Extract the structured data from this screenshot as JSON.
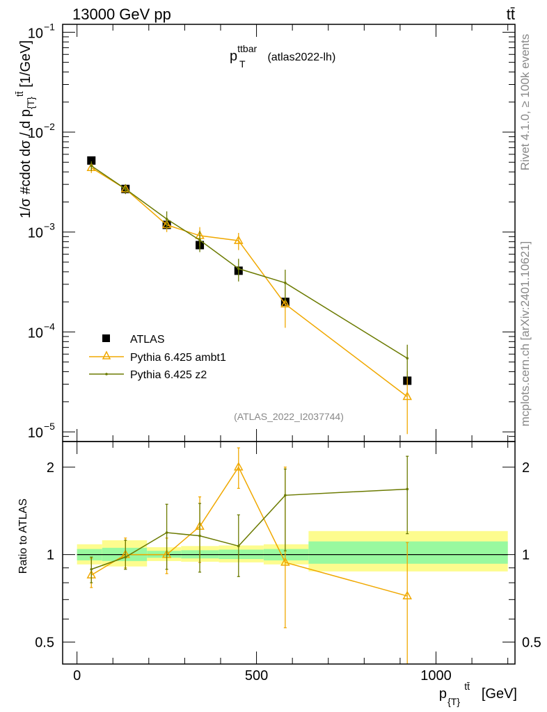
{
  "header": {
    "left": "13000 GeV pp",
    "right": "tt̄"
  },
  "side_labels": {
    "top": "Rivet 4.1.0, ≥ 100k events",
    "bottom": "mcplots.cern.ch [arXiv:2401.10621]"
  },
  "chart_data": [
    {
      "type": "line",
      "panel": "main",
      "title_main": "p",
      "title_sup": "ttbar",
      "title_sub": "T",
      "title_suffix": " (atlas2022-lh)",
      "watermark": "(ATLAS_2022_I2037744)",
      "ylabel": "1/σ #cdot dσ / d p_{T}^{tt̄} [1/GeV]",
      "ylabel_main": "1/σ #cdot dσ / d p",
      "ylabel_sub": "{T}",
      "ylabel_sup": "tt̄",
      "ylabel_unit": " [1/GeV]",
      "yscale": "log",
      "ylim": [
        8e-06,
        0.12
      ],
      "xlim": [
        -40,
        1220
      ],
      "ytick_labels": [
        "10",
        "10",
        "10",
        "10",
        "10"
      ],
      "ytick_exponents": [
        "−1",
        "−2",
        "−3",
        "−4",
        "−5"
      ],
      "ytick_values": [
        0.1,
        0.01,
        0.001,
        0.0001,
        1e-05
      ],
      "legend_position": "lower-left",
      "series": [
        {
          "name": "ATLAS",
          "color": "#000000",
          "marker": "square",
          "x": [
            40,
            135,
            250,
            342,
            450,
            580,
            920
          ],
          "y": [
            0.0052,
            0.0027,
            0.00118,
            0.00074,
            0.00041,
            0.0002,
            3.25e-05
          ]
        },
        {
          "name": "Pythia 6.425 ambt1",
          "color": "#f0a800",
          "marker": "triangle",
          "x": [
            40,
            135,
            250,
            342,
            450,
            580,
            920
          ],
          "y": [
            0.0044,
            0.0027,
            0.00118,
            0.00092,
            0.00082,
            0.00019,
            2.25e-05
          ],
          "err_up": [
            0.0005,
            0.0003,
            0.00018,
            0.0002,
            0.00016,
            9e-05,
            1.8e-05
          ],
          "err_down": [
            0.0005,
            0.0003,
            0.00018,
            0.0002,
            0.00016,
            8e-05,
            1.3e-05
          ]
        },
        {
          "name": "Pythia 6.425 z2",
          "color": "#6b7a00",
          "marker": "dot",
          "x": [
            40,
            135,
            250,
            342,
            450,
            580,
            920
          ],
          "y": [
            0.0046,
            0.0027,
            0.00135,
            0.00083,
            0.00043,
            0.00031,
            5.45e-05
          ],
          "err_up": [
            0.0005,
            0.0003,
            0.00026,
            0.0002,
            0.00011,
            0.00011,
            2e-05
          ],
          "err_down": [
            0.0005,
            0.0003,
            0.00026,
            0.0002,
            0.00011,
            0.00011,
            2e-05
          ]
        }
      ]
    },
    {
      "type": "line",
      "panel": "ratio",
      "ylabel": "Ratio to ATLAS",
      "xlabel": "p_{T}^{tt̄} [GeV]",
      "xlabel_main": "p",
      "xlabel_sub": "{T}",
      "xlabel_sup": "tt̄",
      "xlabel_unit": " [GeV]",
      "yscale": "log",
      "ylim": [
        0.42,
        2.45
      ],
      "xlim": [
        -40,
        1220
      ],
      "ytick_labels": [
        "2",
        "1",
        "0.5"
      ],
      "ytick_values": [
        2,
        1,
        0.5
      ],
      "xtick_labels": [
        "0",
        "500",
        "1000"
      ],
      "xtick_values": [
        0,
        500,
        1000
      ],
      "bands": [
        {
          "x0": 0,
          "x1": 70,
          "yellow": [
            0.925,
            1.085
          ],
          "green": [
            0.955,
            1.045
          ]
        },
        {
          "x0": 70,
          "x1": 195,
          "yellow": [
            0.91,
            1.12
          ],
          "green": [
            0.95,
            1.055
          ]
        },
        {
          "x0": 195,
          "x1": 290,
          "yellow": [
            0.95,
            1.06
          ],
          "green": [
            0.975,
            1.03
          ]
        },
        {
          "x0": 290,
          "x1": 395,
          "yellow": [
            0.945,
            1.07
          ],
          "green": [
            0.97,
            1.035
          ]
        },
        {
          "x0": 395,
          "x1": 520,
          "yellow": [
            0.94,
            1.075
          ],
          "green": [
            0.965,
            1.04
          ]
        },
        {
          "x0": 520,
          "x1": 645,
          "yellow": [
            0.925,
            1.085
          ],
          "green": [
            0.955,
            1.045
          ]
        },
        {
          "x0": 645,
          "x1": 1200,
          "yellow": [
            0.875,
            1.205
          ],
          "green": [
            0.93,
            1.11
          ]
        }
      ],
      "series": [
        {
          "name": "Pythia 6.425 ambt1",
          "color": "#f0a800",
          "marker": "triangle",
          "x": [
            40,
            135,
            250,
            342,
            450,
            580,
            920
          ],
          "y": [
            0.85,
            1.0,
            1.0,
            1.25,
            2.0,
            0.94,
            0.72
          ],
          "err_up": [
            0.12,
            0.14,
            0.14,
            0.33,
            0.33,
            1.06,
            0.38
          ],
          "err_down": [
            0.08,
            0.1,
            0.14,
            0.31,
            0.31,
            0.38,
            0.38
          ]
        },
        {
          "name": "Pythia 6.425 z2",
          "color": "#6b7a00",
          "marker": "dot",
          "x": [
            40,
            135,
            250,
            342,
            450,
            580,
            920
          ],
          "y": [
            0.89,
            0.98,
            1.19,
            1.16,
            1.07,
            1.6,
            1.68
          ],
          "err_up": [
            0.09,
            0.14,
            0.3,
            0.34,
            0.3,
            0.37,
            0.5
          ],
          "err_down": [
            0.09,
            0.09,
            0.3,
            0.29,
            0.23,
            0.57,
            0.5
          ]
        }
      ]
    }
  ]
}
